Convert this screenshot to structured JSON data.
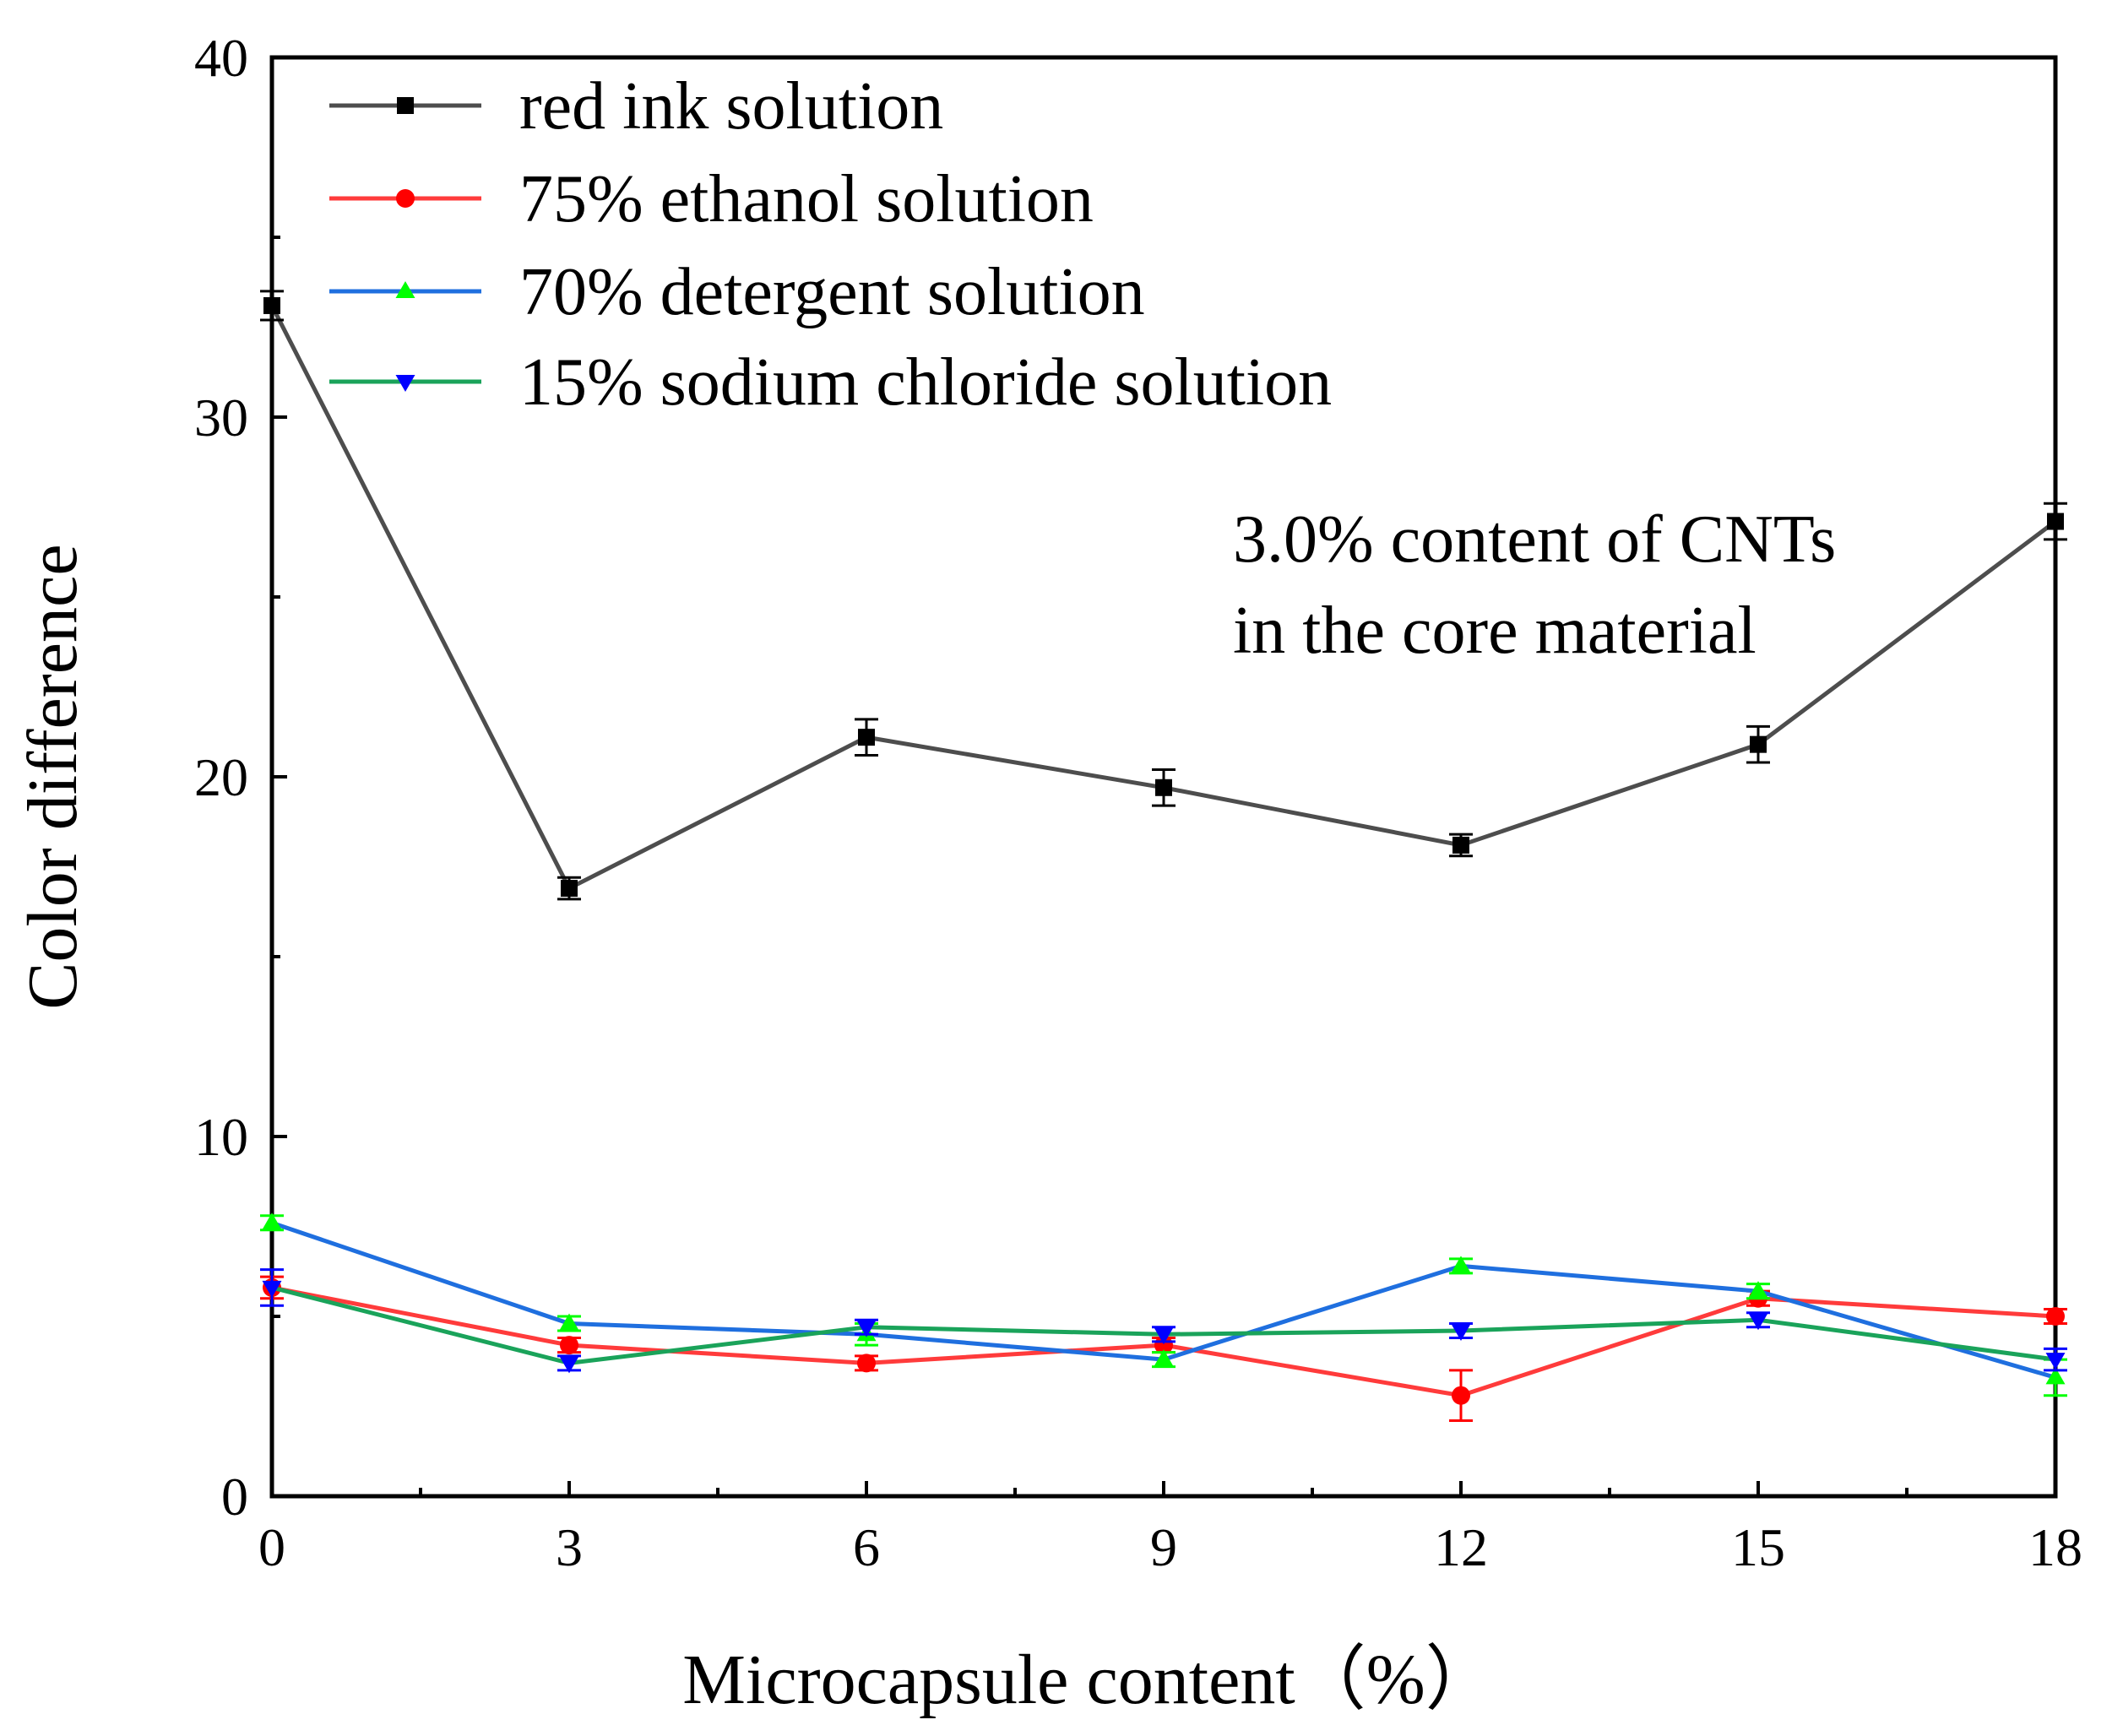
{
  "chart_data": {
    "type": "line",
    "title": "",
    "xlabel": "Microcapsule content（%）",
    "ylabel": "Color difference",
    "xlim": [
      0,
      18
    ],
    "ylim": [
      0,
      40
    ],
    "xticks": [
      0,
      3,
      6,
      9,
      12,
      15,
      18
    ],
    "xtick_labels": [
      "0",
      "3",
      "6",
      "9",
      "12",
      "15",
      "18"
    ],
    "yticks": [
      0,
      10,
      20,
      30,
      40
    ],
    "ytick_labels": [
      "0",
      "10",
      "20",
      "30",
      "40"
    ],
    "grid": false,
    "legend_position": "top-left",
    "annotation": [
      "3.0% content of CNTs",
      "in the core material"
    ],
    "x": [
      0,
      3,
      6,
      9,
      12,
      15,
      18
    ],
    "series": [
      {
        "name": "red ink solution",
        "color": "#4d4d4d",
        "marker_color": "#000000",
        "marker": "square",
        "values": [
          33.1,
          16.9,
          21.1,
          19.7,
          18.1,
          20.9,
          27.1
        ],
        "errors": [
          0.4,
          0.3,
          0.5,
          0.5,
          0.3,
          0.5,
          0.5
        ]
      },
      {
        "name": "75% ethanol solution",
        "color": "#ff3b3b",
        "marker_color": "#ff0000",
        "marker": "circle",
        "values": [
          5.8,
          4.2,
          3.7,
          4.2,
          2.8,
          5.5,
          5.0
        ],
        "errors": [
          0.3,
          0.2,
          0.2,
          0.2,
          0.7,
          0.2,
          0.2
        ]
      },
      {
        "name": "70% detergent solution",
        "color": "#1f6fdf",
        "marker_color": "#00ff00",
        "marker": "triangle-up",
        "values": [
          7.6,
          4.8,
          4.5,
          3.8,
          6.4,
          5.7,
          3.3
        ],
        "errors": [
          0.2,
          0.2,
          0.3,
          0.2,
          0.2,
          0.2,
          0.5
        ]
      },
      {
        "name": "15% sodium chloride solution",
        "color": "#1aa35a",
        "marker_color": "#0000ff",
        "marker": "triangle-down",
        "values": [
          5.8,
          3.7,
          4.7,
          4.5,
          4.6,
          4.9,
          3.8
        ],
        "errors": [
          0.5,
          0.2,
          0.2,
          0.2,
          0.2,
          0.2,
          0.3
        ]
      }
    ]
  }
}
